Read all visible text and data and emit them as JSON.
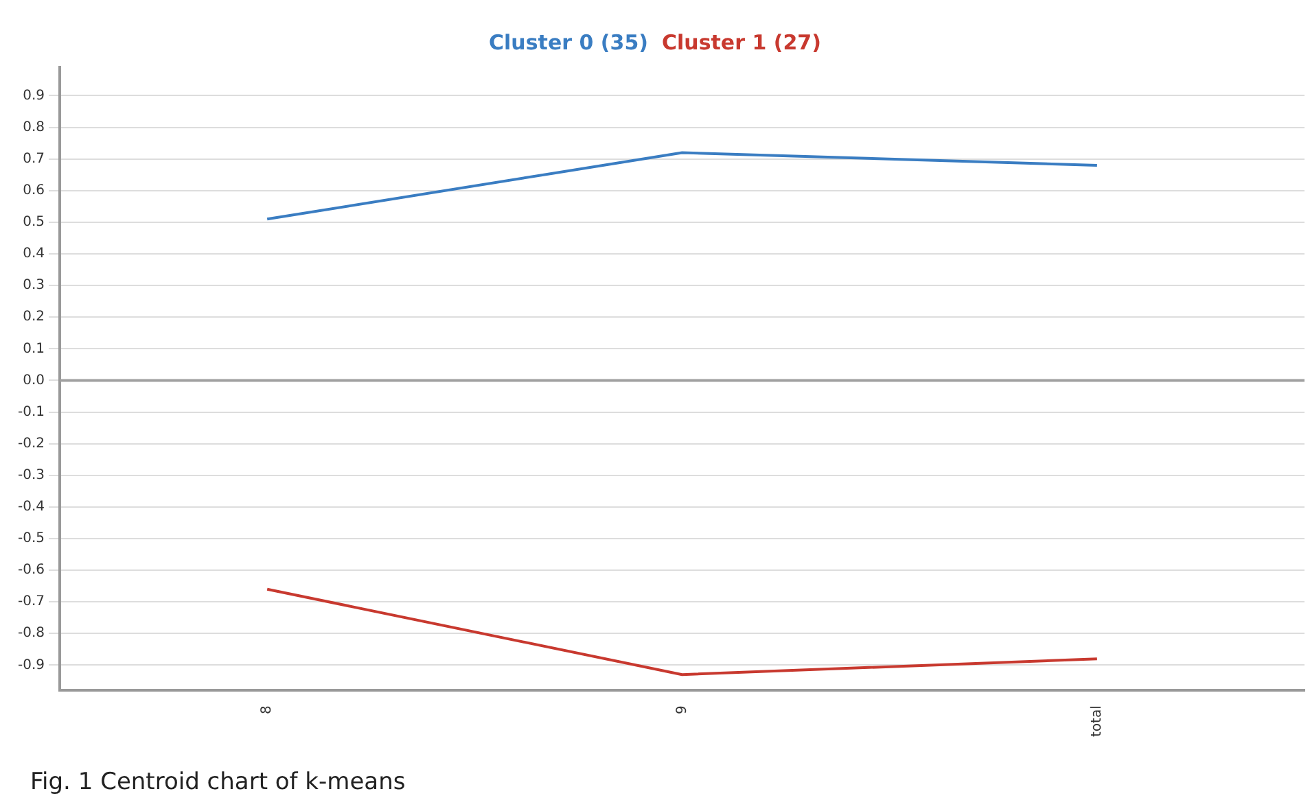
{
  "chart_data": {
    "type": "line",
    "categories": [
      "8",
      "9",
      "total"
    ],
    "series": [
      {
        "name": "Cluster 0 (35)",
        "color": "#3a7dc2",
        "values": [
          0.51,
          0.72,
          0.68
        ]
      },
      {
        "name": "Cluster 1 (27)",
        "color": "#c8392f",
        "values": [
          -0.66,
          -0.93,
          -0.88
        ]
      }
    ],
    "ylim": [
      -0.98,
      0.99
    ],
    "yticks": [
      -0.9,
      -0.8,
      -0.7,
      -0.6,
      -0.5,
      -0.4,
      -0.3,
      -0.2,
      -0.1,
      {
        "value": 0,
        "label": "0.0"
      },
      0.1,
      0.2,
      0.3,
      0.4,
      0.5,
      0.6,
      0.7,
      0.8,
      0.9
    ],
    "grid": "y",
    "legend": "top",
    "marker": "none",
    "line_style": "solid",
    "ref_lines": [
      {
        "axis": "y",
        "value": 0,
        "color": "#a0a0a0"
      }
    ],
    "annotations": [
      "Fig. 1 Centroid chart of k-means"
    ]
  }
}
